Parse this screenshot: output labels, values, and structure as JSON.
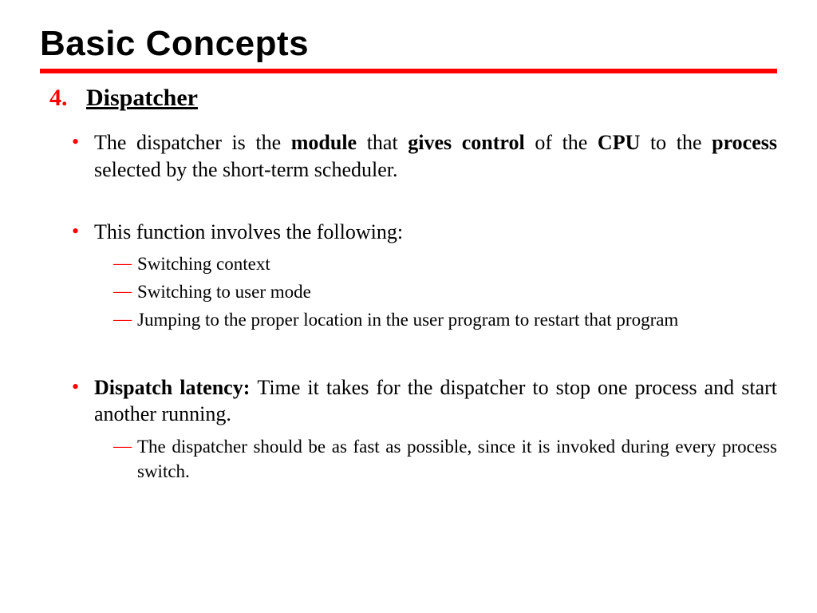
{
  "colors": {
    "accent": "#ff0000",
    "text": "#000000",
    "background": "#ffffff"
  },
  "typography": {
    "title_family": "Arial",
    "title_size_pt": 44,
    "title_weight": 900,
    "body_family": "Times New Roman",
    "heading_size_pt": 30,
    "bullet_size_pt": 26,
    "sub_size_pt": 23
  },
  "title": "Basic Concepts",
  "section": {
    "number": "4.",
    "heading": "Dispatcher"
  },
  "bullets": [
    {
      "runs": [
        {
          "t": "The dispatcher is the ",
          "b": false
        },
        {
          "t": "module",
          "b": true
        },
        {
          "t": " that ",
          "b": false
        },
        {
          "t": "gives control",
          "b": true
        },
        {
          "t": " of the ",
          "b": false
        },
        {
          "t": "CPU",
          "b": true
        },
        {
          "t": " to the ",
          "b": false
        },
        {
          "t": "process",
          "b": true
        },
        {
          "t": " selected by the short-term scheduler.",
          "b": false
        }
      ],
      "subs": []
    },
    {
      "gap_before": "md",
      "runs": [
        {
          "t": "This function involves the following:",
          "b": false
        }
      ],
      "subs": [
        {
          "runs": [
            {
              "t": "Switching context",
              "b": false
            }
          ]
        },
        {
          "runs": [
            {
              "t": "Switching to user mode",
              "b": false
            }
          ]
        },
        {
          "runs": [
            {
              "t": "Jumping to the proper location in the user program to restart that program",
              "b": false
            }
          ]
        }
      ]
    },
    {
      "gap_before": "lg",
      "runs": [
        {
          "t": "Dispatch latency: ",
          "b": true
        },
        {
          "t": "Time it takes for the dispatcher to stop one process and start another running.",
          "b": false
        }
      ],
      "subs": [
        {
          "runs": [
            {
              "t": "The dispatcher should be as fast as possible, since it is invoked during every process switch.",
              "b": false
            }
          ]
        }
      ]
    }
  ]
}
